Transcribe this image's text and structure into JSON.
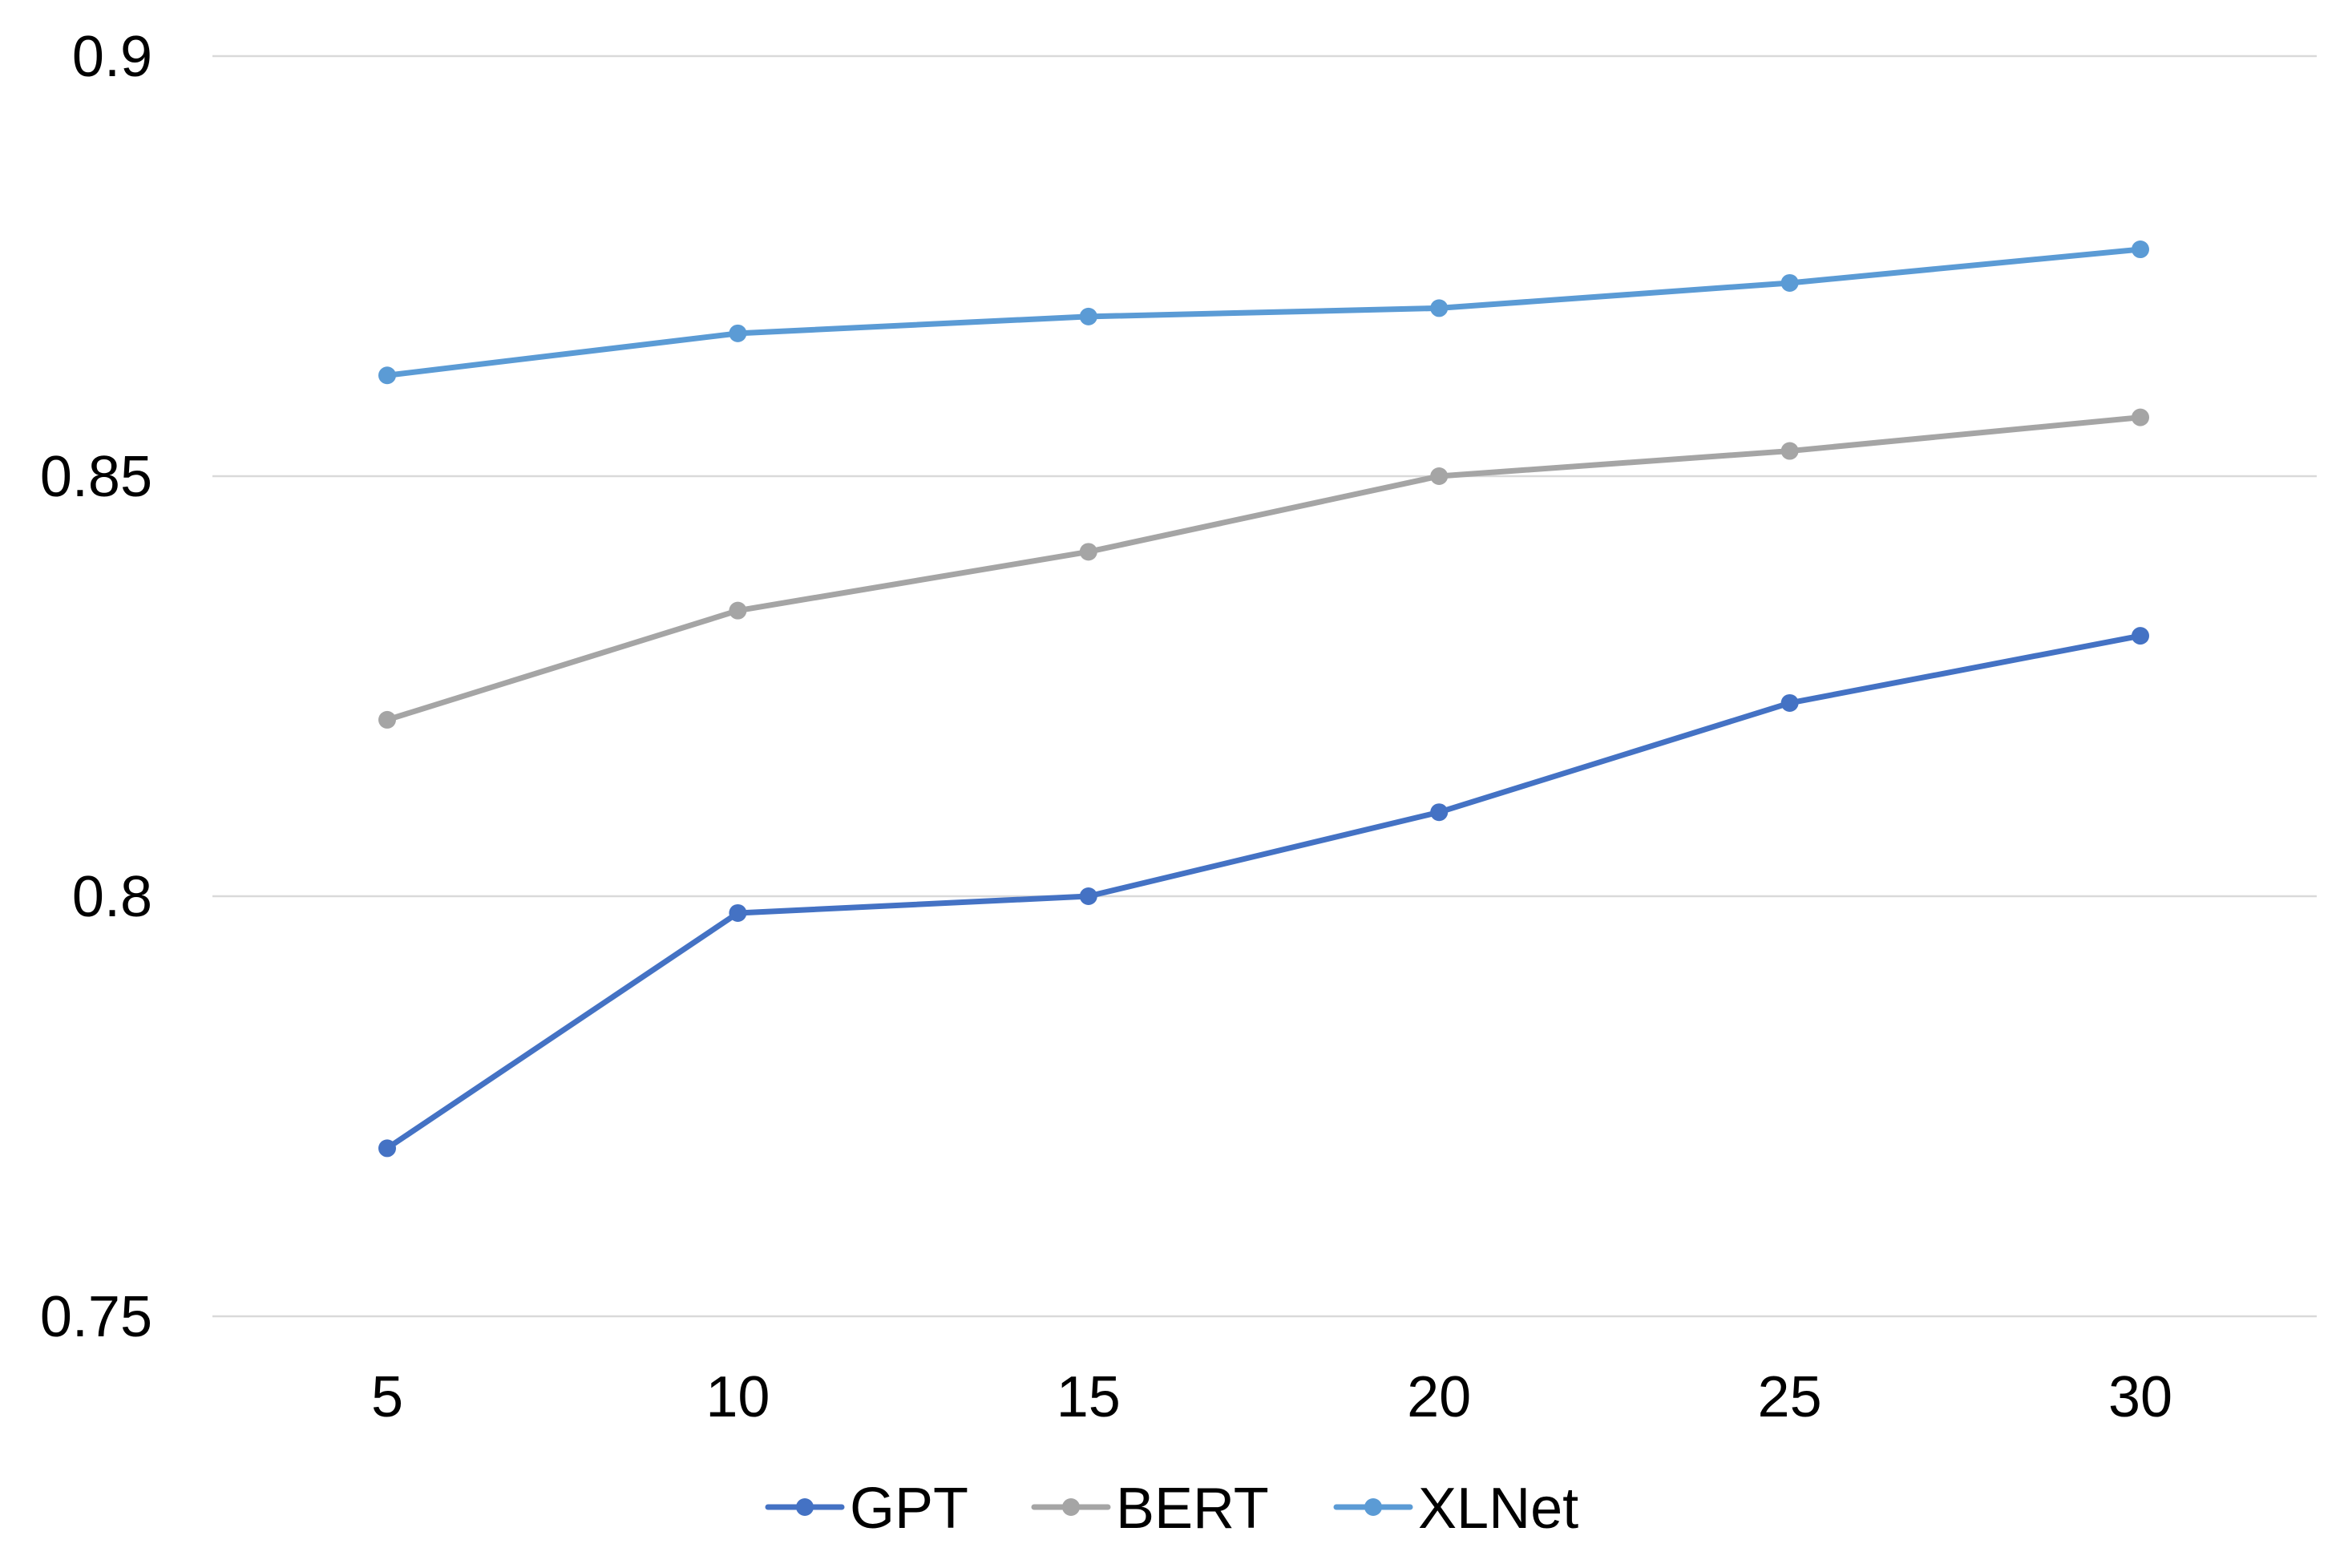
{
  "chart_data": {
    "type": "line",
    "title": "",
    "xlabel": "",
    "ylabel": "",
    "x": [
      5,
      10,
      15,
      20,
      25,
      30
    ],
    "x_tick_labels": [
      "5",
      "10",
      "15",
      "20",
      "25",
      "30"
    ],
    "y_tick_values": [
      0.75,
      0.8,
      0.85,
      0.9
    ],
    "y_tick_labels": [
      "0.75",
      "0.8",
      "0.85",
      "0.9"
    ],
    "ylim": [
      0.75,
      0.9
    ],
    "grid": "horizontal",
    "legend_position": "bottom",
    "series": [
      {
        "name": "GPT",
        "color": "#4472c4",
        "values": [
          0.77,
          0.798,
          0.8,
          0.81,
          0.823,
          0.831
        ]
      },
      {
        "name": "BERT",
        "color": "#a5a5a5",
        "values": [
          0.821,
          0.834,
          0.841,
          0.85,
          0.853,
          0.857
        ]
      },
      {
        "name": "XLNet",
        "color": "#5b9bd5",
        "values": [
          0.862,
          0.867,
          0.869,
          0.87,
          0.873,
          0.877
        ]
      }
    ]
  }
}
